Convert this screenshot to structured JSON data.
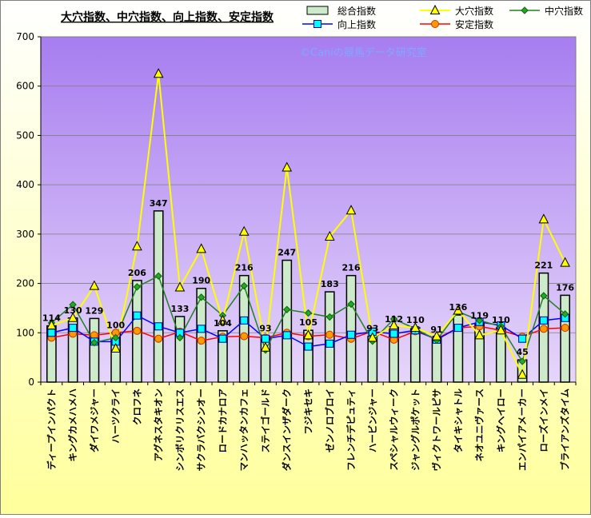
{
  "chart_data": {
    "type": "bar",
    "title": "大穴指数、中穴指数、向上指数、安定指数",
    "watermark": "©Caniの競馬データ研究室",
    "ylim": [
      0,
      700
    ],
    "yticks": [
      0,
      100,
      200,
      300,
      400,
      500,
      600,
      700
    ],
    "grid": true,
    "legend_position": "top-right",
    "colors": {
      "plot_bg_top": "#a77df0",
      "plot_bg_bottom": "#e6d6fa",
      "page_bg_top": "#ffffff",
      "page_bg_bottom": "#ffff9c",
      "bar_fill": "#cdeacb",
      "bar_edge": "#000000",
      "daiana": "#ffff00",
      "chuana": "#208020",
      "kojo": "#0000ff",
      "antei": "#ff0000",
      "kojo_marker": "#00ffff",
      "antei_marker": "#ff9900",
      "watermark": "#7fa8ff"
    },
    "categories": [
      "ディープインパクト",
      "キングカメハメハ",
      "ダイワメジャー",
      "ハーツクライ",
      "クロフネ",
      "アグネスタキオン",
      "シンボリクリスエス",
      "サクラバクシンオー",
      "ロードカナロア",
      "マンハッタンカフェ",
      "ステイゴールド",
      "ダンスインザダーク",
      "フジキセキ",
      "ゼンノロブロイ",
      "フレンチデピュティ",
      "ハービンジャー",
      "スペシャルウィーク",
      "ジャングルポケット",
      "ヴィクトワールピサ",
      "タイキシャトル",
      "ネオユニヴァース",
      "キングヘイロー",
      "エンパイアメーカー",
      "ローズインメイ",
      "ブライアンズタイム"
    ],
    "series": [
      {
        "name": "総合指数",
        "kind": "bar",
        "values": [
          114,
          130,
          129,
          100,
          206,
          347,
          133,
          190,
          104,
          216,
          93,
          247,
          105,
          183,
          216,
          93,
          112,
          110,
          91,
          136,
          119,
          110,
          45,
          221,
          176
        ]
      },
      {
        "name": "大穴指数",
        "kind": "line",
        "values": [
          115,
          130,
          195,
          68,
          275,
          625,
          192,
          270,
          125,
          305,
          70,
          435,
          95,
          295,
          348,
          90,
          115,
          110,
          93,
          145,
          95,
          105,
          15,
          330,
          242
        ]
      },
      {
        "name": "中穴指数",
        "kind": "line",
        "values": [
          120,
          157,
          80,
          90,
          193,
          215,
          90,
          172,
          135,
          195,
          65,
          147,
          140,
          132,
          158,
          83,
          128,
          108,
          85,
          143,
          125,
          113,
          42,
          175,
          138
        ]
      },
      {
        "name": "向上指数",
        "kind": "line",
        "values": [
          100,
          110,
          82,
          82,
          135,
          113,
          100,
          108,
          88,
          125,
          88,
          95,
          72,
          78,
          96,
          102,
          98,
          105,
          86,
          110,
          122,
          115,
          88,
          125,
          130
        ]
      },
      {
        "name": "安定指数",
        "kind": "line",
        "values": [
          90,
          98,
          95,
          100,
          104,
          88,
          102,
          84,
          92,
          93,
          90,
          100,
          93,
          96,
          88,
          103,
          86,
          103,
          88,
          110,
          113,
          105,
          92,
          108,
          110
        ]
      }
    ],
    "bar_labels": [
      "114",
      "130",
      "129",
      "100",
      "206",
      "347",
      "133",
      "190",
      "104",
      "216",
      "93",
      "247",
      "105",
      "183",
      "216",
      "93",
      "112",
      "110",
      "91",
      "136",
      "119",
      "110",
      "45",
      "221",
      "176"
    ]
  }
}
